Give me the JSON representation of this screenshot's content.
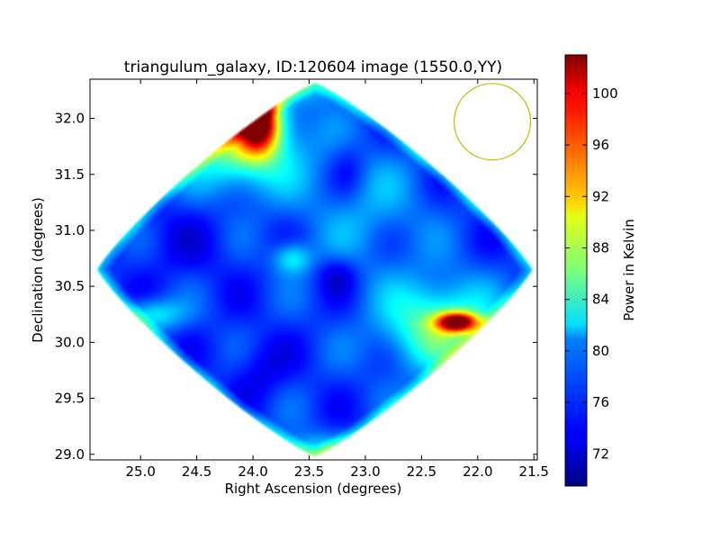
{
  "chart_data": {
    "type": "heatmap",
    "title": "triangulum_galaxy, ID:120604 image (1550.0,YY)",
    "xlabel": "Right Ascension (degrees)",
    "ylabel": "Declination (degrees)",
    "xlim": [
      25.45,
      21.47
    ],
    "ylim": [
      28.95,
      32.35
    ],
    "x_axis_inverted": true,
    "x_ticks": [
      25.0,
      24.5,
      24.0,
      23.5,
      23.0,
      22.5,
      22.0,
      21.5
    ],
    "x_tick_labels": [
      "25.0",
      "24.5",
      "24.0",
      "23.5",
      "23.0",
      "22.5",
      "22.0",
      "21.5"
    ],
    "y_ticks": [
      29.0,
      29.5,
      30.0,
      30.5,
      31.0,
      31.5,
      32.0
    ],
    "y_tick_labels": [
      "29.0",
      "29.5",
      "30.0",
      "30.5",
      "31.0",
      "31.5",
      "32.0"
    ],
    "colorbar": {
      "label": "Power in Kelvin",
      "colormap": "jet",
      "range": [
        69.5,
        103
      ],
      "ticks": [
        72,
        76,
        80,
        84,
        88,
        92,
        96,
        100
      ],
      "tick_labels": [
        "72",
        "76",
        "80",
        "84",
        "88",
        "92",
        "96",
        "100"
      ]
    },
    "map_extent": {
      "center": [
        23.45,
        30.65
      ],
      "half_width_ra": 1.95,
      "half_height_dec": 1.68
    },
    "background_level": 75.5,
    "features": [
      {
        "kind": "hotspot",
        "ra": 23.95,
        "dec": 31.98,
        "peak": 101,
        "sigma_ra": 0.12,
        "sigma_dec": 0.18
      },
      {
        "kind": "hotspot",
        "ra": 24.1,
        "dec": 31.8,
        "peak": 88,
        "sigma_ra": 0.35,
        "sigma_dec": 0.3
      },
      {
        "kind": "hotspot",
        "ra": 22.18,
        "dec": 30.18,
        "peak": 100,
        "sigma_ra": 0.13,
        "sigma_dec": 0.06
      },
      {
        "kind": "hotspot",
        "ra": 22.35,
        "dec": 30.15,
        "peak": 86,
        "sigma_ra": 0.35,
        "sigma_dec": 0.28
      },
      {
        "kind": "hotspot",
        "ra": 23.65,
        "dec": 30.75,
        "peak": 82,
        "sigma_ra": 0.12,
        "sigma_dec": 0.1
      },
      {
        "kind": "hotspot",
        "ra": 24.9,
        "dec": 30.25,
        "peak": 82,
        "sigma_ra": 0.2,
        "sigma_dec": 0.1
      },
      {
        "kind": "hotspot",
        "ra": 23.45,
        "dec": 29.0,
        "peak": 82,
        "sigma_ra": 0.3,
        "sigma_dec": 0.12
      },
      {
        "kind": "hotspot",
        "ra": 23.4,
        "dec": 32.28,
        "peak": 79,
        "sigma_ra": 0.35,
        "sigma_dec": 0.1
      },
      {
        "kind": "hotspot",
        "ra": 23.0,
        "dec": 31.2,
        "peak": 79,
        "sigma_ra": 0.4,
        "sigma_dec": 0.4
      },
      {
        "kind": "coldspot",
        "ra": 23.15,
        "dec": 31.55,
        "peak": 73,
        "sigma_ra": 0.12,
        "sigma_dec": 0.18
      },
      {
        "kind": "coldspot",
        "ra": 23.25,
        "dec": 30.6,
        "peak": 72,
        "sigma_ra": 0.12,
        "sigma_dec": 0.12
      },
      {
        "kind": "coldspot",
        "ra": 23.95,
        "dec": 29.75,
        "peak": 73,
        "sigma_ra": 0.18,
        "sigma_dec": 0.2
      },
      {
        "kind": "coldspot",
        "ra": 24.6,
        "dec": 30.9,
        "peak": 74,
        "sigma_ra": 0.35,
        "sigma_dec": 0.3
      }
    ],
    "beam_circle": {
      "ra": 21.87,
      "dec": 31.97,
      "radius_ra": 0.34,
      "color": "#bfbf00"
    },
    "colors": {
      "frame": "#000000",
      "background": "#ffffff",
      "beam": "#bfbf00"
    }
  }
}
